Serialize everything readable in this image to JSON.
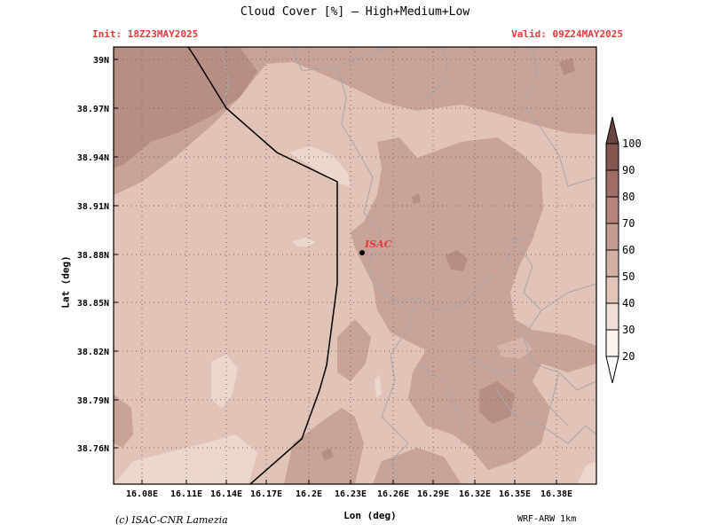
{
  "header": {
    "title": "Cloud Cover [%] — High+Medium+Low",
    "init": "Init: 18Z23MAY2025",
    "valid": "Valid: 09Z24MAY2025"
  },
  "axes": {
    "ylabel": "Lat (deg)",
    "xlabel": "Lon (deg)",
    "lat_ticks": [
      "39N",
      "38.97N",
      "38.94N",
      "38.91N",
      "38.88N",
      "38.85N",
      "38.82N",
      "38.79N",
      "38.76N"
    ],
    "lon_ticks": [
      "16.08E",
      "16.11E",
      "16.14E",
      "16.17E",
      "16.2E",
      "16.23E",
      "16.26E",
      "16.29E",
      "16.32E",
      "16.35E",
      "16.38E"
    ]
  },
  "marker": {
    "label": "ISAC"
  },
  "colorbar": {
    "levels": [
      "20",
      "30",
      "40",
      "50",
      "60",
      "70",
      "80",
      "90",
      "100"
    ],
    "colors": [
      "#fbf3ee",
      "#f0ddd3",
      "#e2c4b8",
      "#d4afa3",
      "#c59a90",
      "#b4847b",
      "#9e6e66",
      "#855650",
      "#6a4540"
    ]
  },
  "footer": {
    "credit": "(c) ISAC-CNR Lamezia",
    "model": "WRF-ARW 1km"
  },
  "colors": {
    "accent": "#e83a3a",
    "background_field": "#dfbfb4"
  }
}
